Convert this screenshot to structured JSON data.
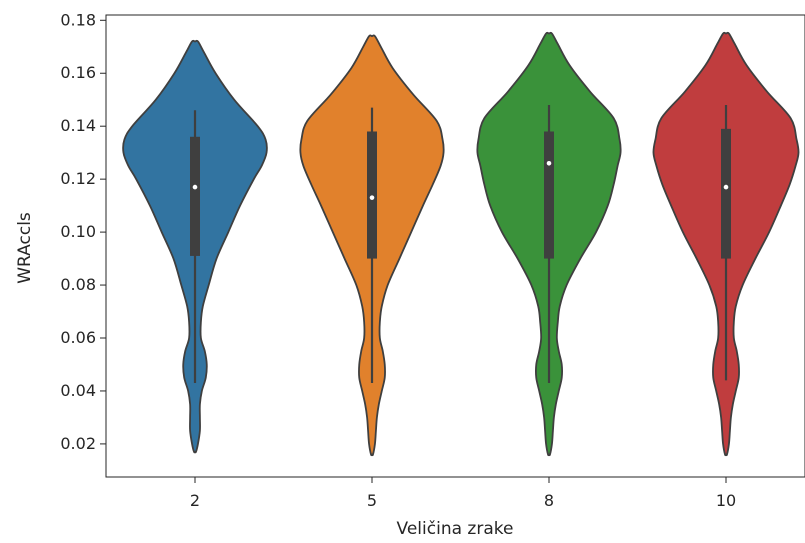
{
  "chart_data": {
    "type": "violin",
    "xlabel": "Veličina zrake",
    "ylabel": "WRAccls",
    "ylim": [
      0.0075,
      0.182
    ],
    "yticks": [
      "0.02",
      "0.04",
      "0.06",
      "0.08",
      "0.10",
      "0.12",
      "0.14",
      "0.16",
      "0.18"
    ],
    "grid": false,
    "categories": [
      "2",
      "5",
      "8",
      "10"
    ],
    "colors": [
      "#3274a1",
      "#e1812c",
      "#3a923a",
      "#c03d3e"
    ],
    "violins": [
      {
        "category": "2",
        "min": 0.043,
        "q1": 0.091,
        "median": 0.117,
        "q3": 0.136,
        "max": 0.146,
        "y_top": 0.172,
        "y_bottom": 0.017,
        "profile": [
          [
            0.172,
            0.03
          ],
          [
            0.168,
            0.09
          ],
          [
            0.16,
            0.21
          ],
          [
            0.15,
            0.4
          ],
          [
            0.14,
            0.64
          ],
          [
            0.135,
            0.72
          ],
          [
            0.13,
            0.73
          ],
          [
            0.125,
            0.68
          ],
          [
            0.12,
            0.6
          ],
          [
            0.11,
            0.46
          ],
          [
            0.1,
            0.34
          ],
          [
            0.09,
            0.22
          ],
          [
            0.08,
            0.14
          ],
          [
            0.072,
            0.08
          ],
          [
            0.066,
            0.06
          ],
          [
            0.06,
            0.06
          ],
          [
            0.055,
            0.1
          ],
          [
            0.05,
            0.12
          ],
          [
            0.045,
            0.11
          ],
          [
            0.04,
            0.07
          ],
          [
            0.035,
            0.05
          ],
          [
            0.03,
            0.05
          ],
          [
            0.025,
            0.05
          ],
          [
            0.02,
            0.03
          ],
          [
            0.017,
            0.01
          ]
        ]
      },
      {
        "category": "5",
        "min": 0.043,
        "q1": 0.09,
        "median": 0.113,
        "q3": 0.138,
        "max": 0.147,
        "y_top": 0.174,
        "y_bottom": 0.016,
        "profile": [
          [
            0.174,
            0.03
          ],
          [
            0.17,
            0.09
          ],
          [
            0.162,
            0.21
          ],
          [
            0.152,
            0.42
          ],
          [
            0.142,
            0.66
          ],
          [
            0.135,
            0.72
          ],
          [
            0.13,
            0.73
          ],
          [
            0.125,
            0.7
          ],
          [
            0.118,
            0.62
          ],
          [
            0.11,
            0.52
          ],
          [
            0.1,
            0.4
          ],
          [
            0.09,
            0.28
          ],
          [
            0.08,
            0.16
          ],
          [
            0.072,
            0.1
          ],
          [
            0.066,
            0.08
          ],
          [
            0.06,
            0.08
          ],
          [
            0.055,
            0.11
          ],
          [
            0.05,
            0.13
          ],
          [
            0.045,
            0.13
          ],
          [
            0.04,
            0.1
          ],
          [
            0.035,
            0.07
          ],
          [
            0.03,
            0.05
          ],
          [
            0.025,
            0.04
          ],
          [
            0.02,
            0.03
          ],
          [
            0.016,
            0.01
          ]
        ]
      },
      {
        "category": "8",
        "min": 0.043,
        "q1": 0.09,
        "median": 0.126,
        "q3": 0.138,
        "max": 0.148,
        "y_top": 0.175,
        "y_bottom": 0.016,
        "profile": [
          [
            0.175,
            0.03
          ],
          [
            0.171,
            0.09
          ],
          [
            0.163,
            0.21
          ],
          [
            0.153,
            0.42
          ],
          [
            0.143,
            0.66
          ],
          [
            0.135,
            0.72
          ],
          [
            0.13,
            0.73
          ],
          [
            0.125,
            0.7
          ],
          [
            0.118,
            0.66
          ],
          [
            0.11,
            0.6
          ],
          [
            0.1,
            0.48
          ],
          [
            0.09,
            0.32
          ],
          [
            0.08,
            0.18
          ],
          [
            0.072,
            0.11
          ],
          [
            0.066,
            0.09
          ],
          [
            0.06,
            0.08
          ],
          [
            0.055,
            0.1
          ],
          [
            0.05,
            0.13
          ],
          [
            0.045,
            0.13
          ],
          [
            0.04,
            0.1
          ],
          [
            0.035,
            0.07
          ],
          [
            0.03,
            0.05
          ],
          [
            0.025,
            0.04
          ],
          [
            0.02,
            0.03
          ],
          [
            0.016,
            0.01
          ]
        ]
      },
      {
        "category": "10",
        "min": 0.044,
        "q1": 0.09,
        "median": 0.117,
        "q3": 0.139,
        "max": 0.148,
        "y_top": 0.175,
        "y_bottom": 0.016,
        "profile": [
          [
            0.175,
            0.03
          ],
          [
            0.171,
            0.09
          ],
          [
            0.163,
            0.21
          ],
          [
            0.153,
            0.42
          ],
          [
            0.143,
            0.66
          ],
          [
            0.135,
            0.72
          ],
          [
            0.13,
            0.74
          ],
          [
            0.125,
            0.71
          ],
          [
            0.118,
            0.65
          ],
          [
            0.11,
            0.56
          ],
          [
            0.1,
            0.44
          ],
          [
            0.09,
            0.3
          ],
          [
            0.08,
            0.17
          ],
          [
            0.072,
            0.1
          ],
          [
            0.066,
            0.08
          ],
          [
            0.06,
            0.08
          ],
          [
            0.055,
            0.11
          ],
          [
            0.05,
            0.13
          ],
          [
            0.045,
            0.13
          ],
          [
            0.04,
            0.1
          ],
          [
            0.035,
            0.07
          ],
          [
            0.03,
            0.05
          ],
          [
            0.025,
            0.04
          ],
          [
            0.02,
            0.03
          ],
          [
            0.016,
            0.01
          ]
        ]
      }
    ]
  }
}
